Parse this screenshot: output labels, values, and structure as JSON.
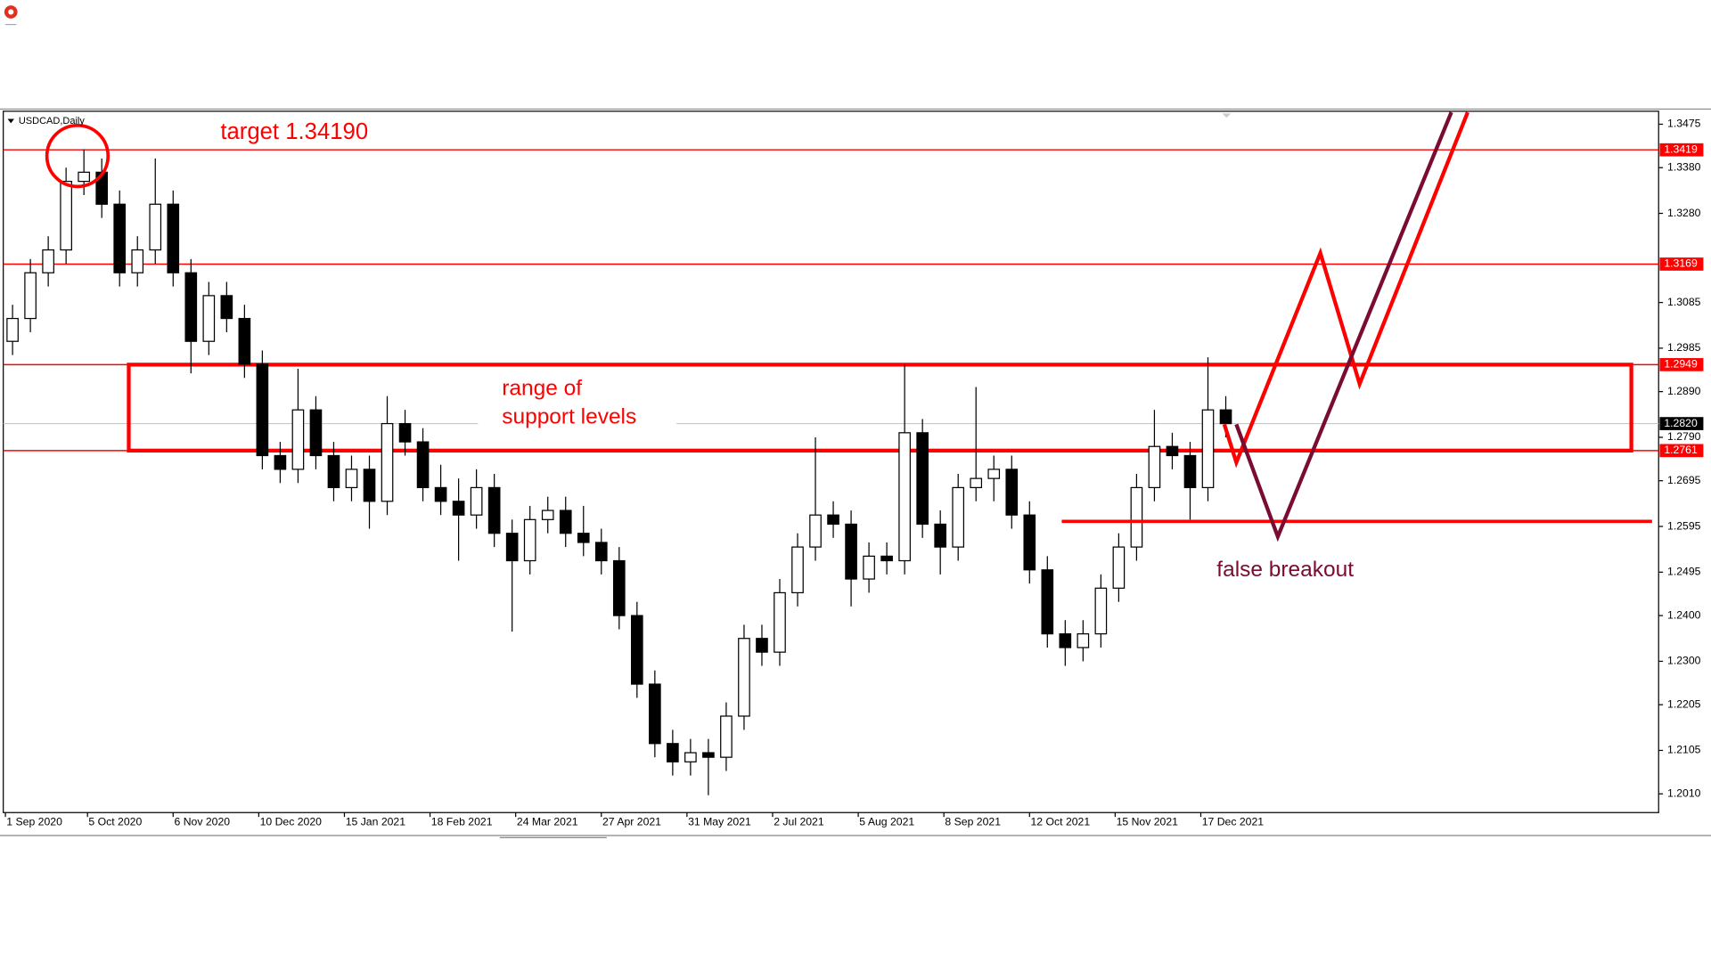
{
  "chart_data": {
    "type": "candlestick",
    "symbol": "USDCAD,Daily",
    "xlim": [
      -0.6,
      463.3
    ],
    "xticks": [
      {
        "value": 0,
        "label": "1 Sep 2020"
      },
      {
        "value": 23,
        "label": "5 Oct 2020"
      },
      {
        "value": 47,
        "label": "6 Nov 2020"
      },
      {
        "value": 71,
        "label": "10 Dec 2020"
      },
      {
        "value": 95,
        "label": "15 Jan 2021"
      },
      {
        "value": 119,
        "label": "18 Feb 2021"
      },
      {
        "value": 143,
        "label": "24 Mar 2021"
      },
      {
        "value": 167,
        "label": "27 Apr 2021"
      },
      {
        "value": 191,
        "label": "31 May 2021"
      },
      {
        "value": 215,
        "label": "2 Jul 2021"
      },
      {
        "value": 239,
        "label": "5 Aug 2021"
      },
      {
        "value": 263,
        "label": "8 Sep 2021"
      },
      {
        "value": 287,
        "label": "12 Oct 2021"
      },
      {
        "value": 311,
        "label": "15 Nov 2021"
      },
      {
        "value": 335,
        "label": "17 Dec 2021"
      }
    ],
    "ylim": [
      1.1969,
      1.3501
    ],
    "yticks": [
      1.3475,
      {
        "value": 1.338,
        "label": "1.3380"
      },
      {
        "value": 1.328,
        "label": "1.3280"
      },
      1.3085,
      1.2985,
      {
        "value": 1.289,
        "label": "1.2890"
      },
      {
        "value": 1.279,
        "label": "1.2790"
      },
      1.2695,
      1.2595,
      1.2495,
      {
        "value": 1.24,
        "label": "1.2400"
      },
      {
        "value": 1.23,
        "label": "1.2300"
      },
      1.2205,
      1.2105,
      {
        "value": 1.201,
        "label": "1.2010"
      }
    ],
    "x": [
      2,
      7,
      12,
      17,
      22,
      27,
      32,
      37,
      42,
      47,
      52,
      57,
      62,
      67,
      72,
      77,
      82,
      87,
      92,
      97,
      102,
      107,
      112,
      117,
      122,
      127,
      132,
      137,
      142,
      147,
      152,
      157,
      162,
      167,
      172,
      177,
      182,
      187,
      192,
      197,
      202,
      207,
      212,
      217,
      222,
      227,
      232,
      237,
      242,
      247,
      252,
      257,
      262,
      267,
      272,
      277,
      282,
      287,
      292,
      297,
      302,
      307,
      312,
      317,
      322,
      327,
      332,
      337,
      342
    ],
    "open": [
      1.3,
      1.305,
      1.315,
      1.32,
      1.335,
      1.337,
      1.33,
      1.315,
      1.32,
      1.33,
      1.315,
      1.3,
      1.31,
      1.305,
      1.295,
      1.275,
      1.272,
      1.285,
      1.275,
      1.268,
      1.272,
      1.265,
      1.282,
      1.278,
      1.268,
      1.265,
      1.262,
      1.268,
      1.258,
      1.252,
      1.261,
      1.263,
      1.258,
      1.256,
      1.252,
      1.24,
      1.225,
      1.212,
      1.208,
      1.21,
      1.209,
      1.218,
      1.235,
      1.232,
      1.245,
      1.255,
      1.262,
      1.26,
      1.248,
      1.253,
      1.252,
      1.28,
      1.26,
      1.255,
      1.268,
      1.27,
      1.272,
      1.262,
      1.25,
      1.236,
      1.233,
      1.236,
      1.246,
      1.255,
      1.268,
      1.277,
      1.275,
      1.268,
      1.285
    ],
    "high": [
      1.308,
      1.318,
      1.323,
      1.338,
      1.342,
      1.34,
      1.333,
      1.323,
      1.34,
      1.333,
      1.318,
      1.313,
      1.313,
      1.308,
      1.298,
      1.278,
      1.294,
      1.288,
      1.278,
      1.275,
      1.275,
      1.288,
      1.285,
      1.281,
      1.273,
      1.27,
      1.272,
      1.271,
      1.261,
      1.264,
      1.266,
      1.266,
      1.264,
      1.259,
      1.255,
      1.243,
      1.228,
      1.215,
      1.213,
      1.213,
      1.221,
      1.238,
      1.238,
      1.248,
      1.258,
      1.279,
      1.265,
      1.263,
      1.256,
      1.256,
      1.295,
      1.283,
      1.263,
      1.271,
      1.29,
      1.275,
      1.275,
      1.265,
      1.253,
      1.239,
      1.239,
      1.249,
      1.258,
      1.271,
      1.285,
      1.28,
      1.278,
      1.2965,
      1.288
    ],
    "low": [
      1.297,
      1.302,
      1.312,
      1.317,
      1.332,
      1.327,
      1.312,
      1.312,
      1.317,
      1.312,
      1.293,
      1.297,
      1.302,
      1.292,
      1.272,
      1.269,
      1.269,
      1.272,
      1.265,
      1.265,
      1.259,
      1.262,
      1.275,
      1.265,
      1.262,
      1.252,
      1.259,
      1.255,
      1.2365,
      1.249,
      1.258,
      1.255,
      1.253,
      1.249,
      1.237,
      1.222,
      1.209,
      1.205,
      1.205,
      1.2007,
      1.206,
      1.215,
      1.229,
      1.229,
      1.242,
      1.252,
      1.257,
      1.242,
      1.245,
      1.249,
      1.249,
      1.257,
      1.249,
      1.252,
      1.265,
      1.265,
      1.259,
      1.247,
      1.233,
      1.229,
      1.23,
      1.233,
      1.243,
      1.252,
      1.265,
      1.272,
      1.261,
      1.265,
      1.279
    ],
    "close": [
      1.305,
      1.315,
      1.32,
      1.335,
      1.337,
      1.33,
      1.315,
      1.32,
      1.33,
      1.315,
      1.3,
      1.31,
      1.305,
      1.295,
      1.275,
      1.272,
      1.285,
      1.275,
      1.268,
      1.272,
      1.265,
      1.282,
      1.278,
      1.268,
      1.265,
      1.262,
      1.268,
      1.258,
      1.252,
      1.261,
      1.263,
      1.258,
      1.256,
      1.252,
      1.24,
      1.225,
      1.212,
      1.208,
      1.21,
      1.209,
      1.218,
      1.235,
      1.232,
      1.245,
      1.255,
      1.262,
      1.26,
      1.248,
      1.253,
      1.252,
      1.28,
      1.26,
      1.255,
      1.268,
      1.27,
      1.272,
      1.262,
      1.25,
      1.236,
      1.233,
      1.236,
      1.246,
      1.255,
      1.268,
      1.277,
      1.275,
      1.268,
      1.285,
      1.282
    ],
    "levels": [
      1.3419,
      1.3169,
      1.2949,
      1.2761
    ],
    "level_color": "#ff0000",
    "last_price": {
      "value": 1.282,
      "label": "1.2820"
    },
    "annotations": {
      "target": "target 1.34190",
      "range": [
        "range of",
        "support levels"
      ],
      "false_breakout": "false breakout"
    }
  }
}
